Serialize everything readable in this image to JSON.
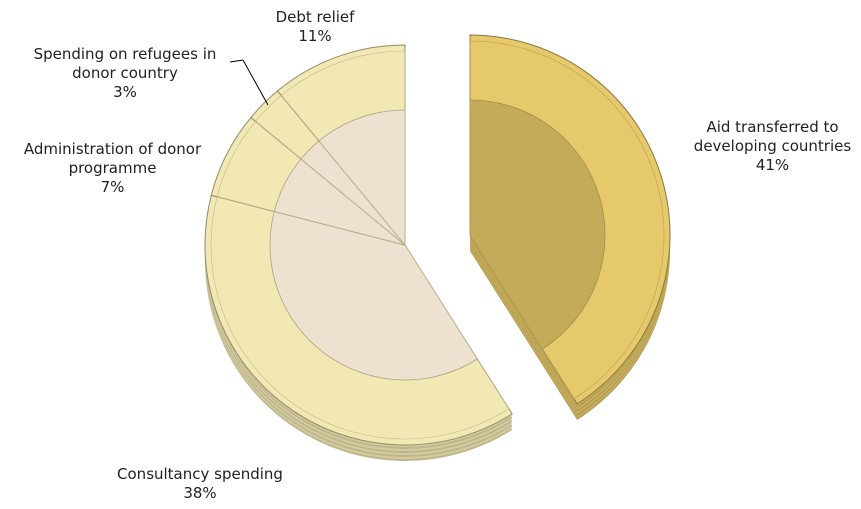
{
  "chart_data": {
    "type": "pie",
    "categories": [
      "Aid transferred to developing countries",
      "Consultancy spending",
      "Administration of donor programme",
      "Spending on refugees in donor country",
      "Debt relief"
    ],
    "values": [
      41,
      38,
      7,
      3,
      11
    ],
    "value_labels": [
      "41%",
      "38%",
      "7%",
      "3%",
      "11%"
    ],
    "colors": [
      "#e6c96a",
      "#f2e8b4",
      "#f2e8b4",
      "#f2e8b4",
      "#f2e8b4"
    ],
    "explode": [
      true,
      false,
      false,
      false,
      false
    ]
  }
}
